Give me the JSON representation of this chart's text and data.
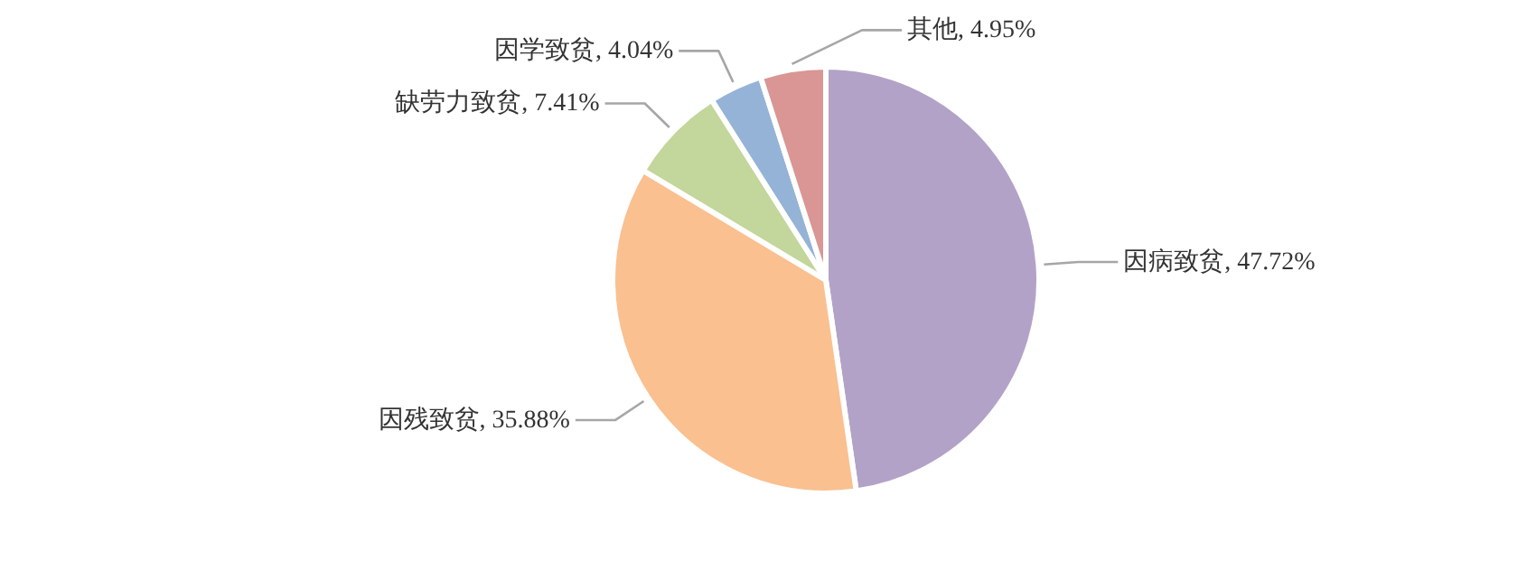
{
  "chart_data": {
    "type": "pie",
    "categories": [
      "因病致贫",
      "因残致贫",
      "缺劳力致贫",
      "因学致贫",
      "其他"
    ],
    "values": [
      47.72,
      35.88,
      7.41,
      4.04,
      4.95
    ],
    "value_labels": [
      "47.72%",
      "35.88%",
      "7.41%",
      "4.04%",
      "4.95%"
    ],
    "colors": [
      "#b3a2c7",
      "#fac090",
      "#c3d69b",
      "#95b3d7",
      "#d99694"
    ]
  }
}
